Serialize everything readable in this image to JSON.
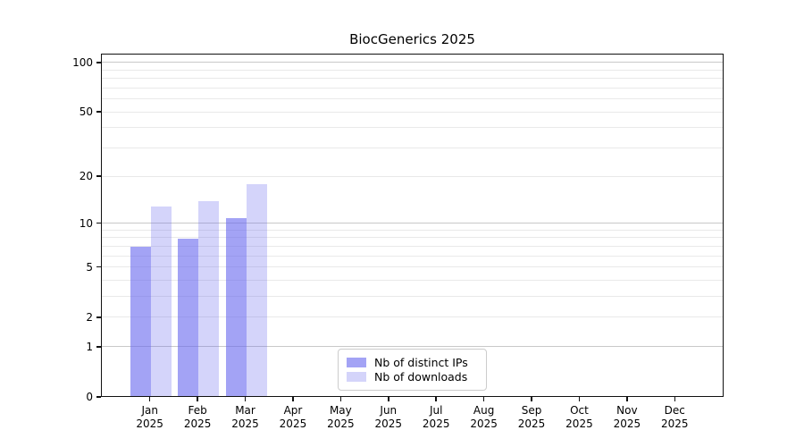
{
  "chart_data": {
    "type": "bar",
    "title": "BiocGenerics 2025",
    "categories": [
      "Jan 2025",
      "Feb 2025",
      "Mar 2025",
      "Apr 2025",
      "May 2025",
      "Jun 2025",
      "Jul 2025",
      "Aug 2025",
      "Sep 2025",
      "Oct 2025",
      "Nov 2025",
      "Dec 2025"
    ],
    "series": [
      {
        "name": "Nb of distinct IPs",
        "values": [
          7,
          8,
          11,
          0,
          0,
          0,
          0,
          0,
          0,
          0,
          0,
          0
        ],
        "fill": "rgba(102,102,238,0.6)"
      },
      {
        "name": "Nb of downloads",
        "values": [
          13,
          14,
          18,
          0,
          0,
          0,
          0,
          0,
          0,
          0,
          0,
          0
        ],
        "fill": "rgba(102,102,238,0.28)"
      }
    ],
    "yscale": "log1p",
    "ylim": [
      0,
      113
    ],
    "yticks": [
      0,
      1,
      2,
      5,
      10,
      20,
      50,
      100
    ],
    "grid": {
      "major": [
        1,
        10,
        100
      ],
      "minor": [
        2,
        3,
        4,
        5,
        6,
        7,
        8,
        9,
        20,
        30,
        40,
        50,
        60,
        70,
        80,
        90
      ]
    },
    "legend_position": "lower center",
    "colors": {
      "bar_base": "#6666ee",
      "grid_major": "#c9c9c9",
      "grid_minor": "#e9e9e9",
      "axis": "#111111",
      "background": "#ffffff"
    }
  }
}
